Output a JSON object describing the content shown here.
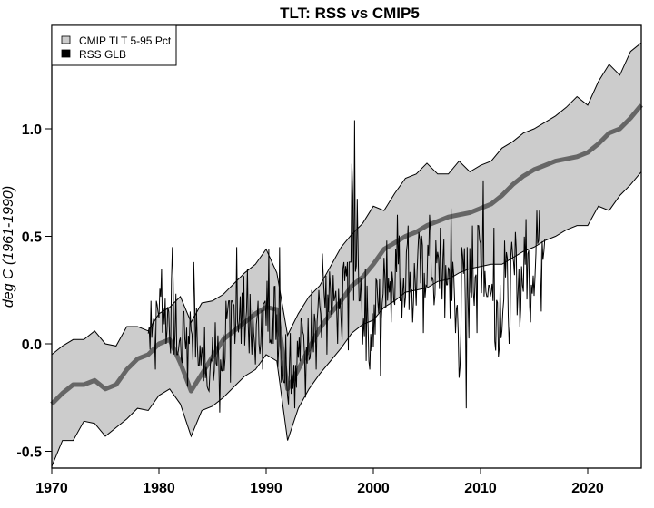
{
  "chart_data": {
    "type": "line",
    "title": "TLT: RSS vs CMIP5",
    "xlabel": "",
    "ylabel": "deg C (1961-1990)",
    "xlim": [
      1970,
      2025
    ],
    "ylim": [
      -0.58,
      1.47
    ],
    "x_ticks": [
      1970,
      1980,
      1990,
      2000,
      2010,
      2020
    ],
    "x_tick_labels": [
      "1970",
      "1980",
      "1990",
      "2000",
      "2010",
      "2020"
    ],
    "y_ticks": [
      -0.5,
      0.0,
      0.5,
      1.0
    ],
    "y_tick_labels": [
      "-0.5",
      "0.0",
      "0.5",
      "1.0"
    ],
    "grid": false,
    "legend": {
      "position": "top-left",
      "entries": [
        {
          "label": "CMIP TLT 5-95 Pct",
          "color": "#cccccc"
        },
        {
          "label": "RSS GLB",
          "color": "#000000"
        }
      ]
    },
    "colors": {
      "band": "#cccccc",
      "median": "#666666",
      "rss": "#000000"
    },
    "cmip_band": {
      "x": [
        1970,
        1971,
        1972,
        1973,
        1974,
        1975,
        1976,
        1977,
        1978,
        1979,
        1980,
        1981,
        1982,
        1983,
        1984,
        1985,
        1986,
        1987,
        1988,
        1989,
        1990,
        1991,
        1992,
        1993,
        1994,
        1995,
        1996,
        1997,
        1998,
        1999,
        2000,
        2001,
        2002,
        2003,
        2004,
        2005,
        2006,
        2007,
        2008,
        2009,
        2010,
        2011,
        2012,
        2013,
        2014,
        2015,
        2016,
        2017,
        2018,
        2019,
        2020,
        2021,
        2022,
        2023,
        2024,
        2025
      ],
      "upper": [
        -0.05,
        -0.01,
        0.02,
        0.02,
        0.06,
        0.0,
        -0.01,
        0.08,
        0.08,
        0.06,
        0.14,
        0.17,
        0.22,
        0.1,
        0.19,
        0.2,
        0.23,
        0.28,
        0.33,
        0.37,
        0.44,
        0.33,
        0.04,
        0.14,
        0.22,
        0.27,
        0.36,
        0.45,
        0.51,
        0.56,
        0.64,
        0.62,
        0.7,
        0.77,
        0.79,
        0.84,
        0.79,
        0.79,
        0.85,
        0.8,
        0.83,
        0.85,
        0.91,
        0.94,
        0.98,
        1.0,
        1.03,
        1.06,
        1.1,
        1.15,
        1.11,
        1.22,
        1.3,
        1.25,
        1.36,
        1.4
      ],
      "median": [
        -0.28,
        -0.23,
        -0.19,
        -0.19,
        -0.17,
        -0.21,
        -0.19,
        -0.12,
        -0.07,
        -0.05,
        0.0,
        0.02,
        -0.09,
        -0.22,
        -0.14,
        -0.06,
        0.02,
        0.06,
        0.1,
        0.14,
        0.17,
        0.16,
        -0.21,
        -0.12,
        -0.02,
        0.07,
        0.14,
        0.2,
        0.27,
        0.31,
        0.37,
        0.44,
        0.47,
        0.5,
        0.52,
        0.55,
        0.57,
        0.59,
        0.6,
        0.61,
        0.63,
        0.65,
        0.69,
        0.74,
        0.78,
        0.81,
        0.83,
        0.85,
        0.86,
        0.87,
        0.89,
        0.93,
        0.98,
        1.0,
        1.05,
        1.11
      ],
      "lower": [
        -0.57,
        -0.45,
        -0.45,
        -0.36,
        -0.37,
        -0.43,
        -0.39,
        -0.35,
        -0.3,
        -0.31,
        -0.24,
        -0.21,
        -0.28,
        -0.43,
        -0.31,
        -0.29,
        -0.25,
        -0.2,
        -0.15,
        -0.12,
        -0.05,
        -0.08,
        -0.45,
        -0.3,
        -0.21,
        -0.14,
        -0.08,
        -0.02,
        0.05,
        0.09,
        0.11,
        0.17,
        0.2,
        0.24,
        0.25,
        0.26,
        0.29,
        0.3,
        0.33,
        0.35,
        0.36,
        0.37,
        0.37,
        0.4,
        0.43,
        0.45,
        0.48,
        0.5,
        0.53,
        0.55,
        0.55,
        0.64,
        0.62,
        0.69,
        0.74,
        0.8
      ]
    },
    "rss_series": {
      "name": "RSS GLB",
      "frequency": "monthly (approximate reconstruction)",
      "x_start": 1979.0,
      "x_end": 2016.0,
      "annual_mean": [
        0.05,
        0.18,
        0.15,
        -0.02,
        0.12,
        -0.08,
        -0.12,
        -0.03,
        0.16,
        0.15,
        0.0,
        0.18,
        0.14,
        -0.15,
        -0.05,
        0.05,
        0.17,
        0.16,
        0.12,
        0.58,
        0.11,
        0.08,
        0.28,
        0.35,
        0.35,
        0.28,
        0.39,
        0.33,
        0.33,
        0.09,
        0.29,
        0.45,
        0.2,
        0.22,
        0.29,
        0.32,
        0.39,
        0.58
      ],
      "annual_max": [
        0.2,
        0.35,
        0.45,
        0.15,
        0.38,
        0.08,
        0.1,
        0.2,
        0.45,
        0.35,
        0.2,
        0.44,
        0.45,
        0.05,
        0.12,
        0.25,
        0.42,
        0.32,
        0.38,
        1.04,
        0.35,
        0.3,
        0.48,
        0.6,
        0.55,
        0.52,
        0.6,
        0.54,
        0.63,
        0.45,
        0.55,
        0.76,
        0.54,
        0.48,
        0.52,
        0.58,
        0.62,
        0.72
      ],
      "annual_min": [
        -0.12,
        0.0,
        -0.05,
        -0.2,
        -0.1,
        -0.22,
        -0.32,
        -0.18,
        0.0,
        -0.05,
        -0.12,
        0.0,
        -0.18,
        -0.3,
        -0.25,
        -0.12,
        -0.05,
        0.0,
        -0.03,
        0.2,
        -0.12,
        -0.15,
        0.1,
        0.12,
        0.1,
        0.05,
        0.18,
        0.12,
        0.05,
        -0.3,
        0.05,
        0.22,
        -0.06,
        0.0,
        0.08,
        0.1,
        0.15,
        0.4
      ]
    }
  }
}
